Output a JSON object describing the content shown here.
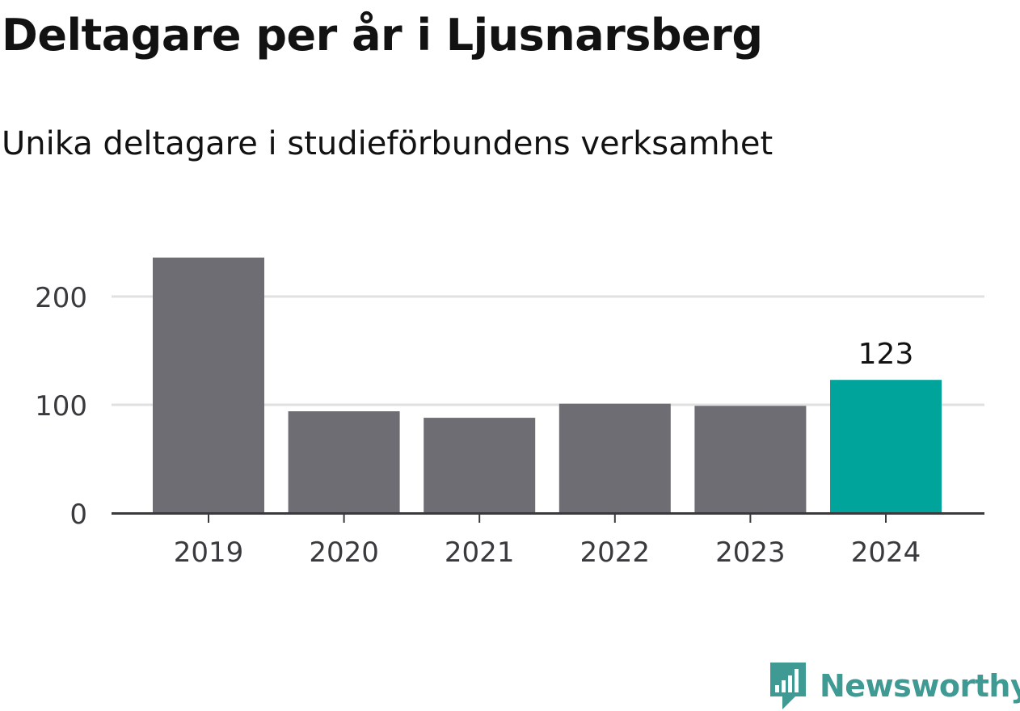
{
  "chart_data": {
    "type": "bar",
    "title": "Deltagare per år i Ljusnarsberg",
    "subtitle": "Unika deltagare i studieförbundens verksamhet",
    "xlabel": "",
    "ylabel": "",
    "categories": [
      "2019",
      "2020",
      "2021",
      "2022",
      "2023",
      "2024"
    ],
    "values": [
      236,
      94,
      88,
      101,
      99,
      123
    ],
    "ylim": [
      0,
      250
    ],
    "yticks": [
      0,
      100,
      200
    ],
    "grid": true,
    "legend": "none",
    "highlight_index": 5,
    "data_labels": [
      {
        "index": 5,
        "text": "123"
      }
    ],
    "colors": {
      "bar": "#6e6d73",
      "highlight": "#00a49a",
      "grid": "#e0e0e0",
      "axis": "#3a3a3e",
      "tick_text": "#3a3a3e",
      "label_text": "#121212"
    }
  },
  "brand": {
    "name": "Newsworthy",
    "icon": "newsworthy-logo-icon",
    "color": "#3e9a93"
  }
}
